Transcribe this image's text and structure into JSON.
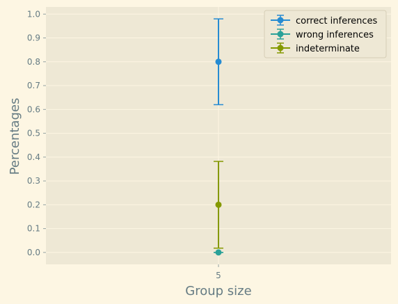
{
  "chart_data": {
    "type": "scatter",
    "title": "",
    "xlabel": "Group size",
    "ylabel": "Percentages",
    "x_categories": [
      "5"
    ],
    "yticks": [
      "0.0",
      "0.1",
      "0.2",
      "0.3",
      "0.4",
      "0.5",
      "0.6",
      "0.7",
      "0.8",
      "0.9",
      "1.0"
    ],
    "xlim": [
      4.5,
      5.5
    ],
    "ylim": [
      -0.05,
      1.03
    ],
    "grid": true,
    "legend_position": "top-right",
    "series": [
      {
        "name": "correct inferences",
        "color": "#268bd2",
        "x": [
          5
        ],
        "y": [
          0.8
        ],
        "err_low": [
          0.62
        ],
        "err_high": [
          0.98
        ]
      },
      {
        "name": "wrong inferences",
        "color": "#2aa198",
        "x": [
          5
        ],
        "y": [
          0.0
        ],
        "err_low": [
          0.0
        ],
        "err_high": [
          0.0
        ]
      },
      {
        "name": "indeterminate",
        "color": "#859900",
        "x": [
          5
        ],
        "y": [
          0.2
        ],
        "err_low": [
          0.018
        ],
        "err_high": [
          0.382
        ]
      }
    ]
  }
}
